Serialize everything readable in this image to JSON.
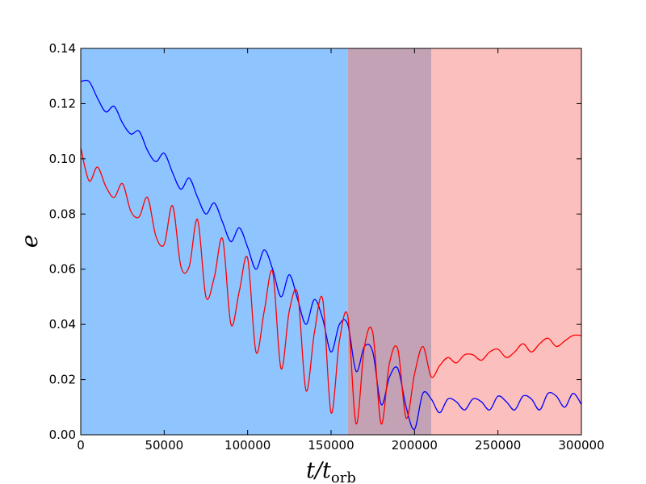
{
  "chart_data": {
    "type": "line",
    "title": "",
    "xlabel": {
      "main": "t/t",
      "sub": "orb"
    },
    "ylabel": "e",
    "xlim": [
      0,
      300000
    ],
    "ylim": [
      0,
      0.14
    ],
    "x_ticks": [
      "0",
      "50000",
      "100000",
      "150000",
      "200000",
      "250000",
      "300000"
    ],
    "y_ticks": [
      "0.00",
      "0.02",
      "0.04",
      "0.06",
      "0.08",
      "0.10",
      "0.12",
      "0.14"
    ],
    "grid": false,
    "legend": "none",
    "shaded_regions": [
      {
        "x": [
          0,
          160000
        ],
        "color": "#8fc5ff"
      },
      {
        "x": [
          160000,
          210000
        ],
        "color": "#c4a2b6"
      },
      {
        "x": [
          210000,
          300000
        ],
        "color": "#fbbfbd"
      }
    ],
    "series": [
      {
        "color": "#0000ff",
        "x": [
          0,
          5000,
          10000,
          15000,
          20000,
          25000,
          30000,
          35000,
          40000,
          45000,
          50000,
          55000,
          60000,
          65000,
          70000,
          75000,
          80000,
          85000,
          90000,
          95000,
          100000,
          105000,
          110000,
          115000,
          120000,
          125000,
          130000,
          135000,
          140000,
          145000,
          150000,
          155000,
          160000,
          165000,
          170000,
          175000,
          180000,
          185000,
          190000,
          195000,
          200000,
          205000,
          210000,
          215000,
          220000,
          225000,
          230000,
          235000,
          240000,
          245000,
          250000,
          255000,
          260000,
          265000,
          270000,
          275000,
          280000,
          285000,
          290000,
          295000,
          300000
        ],
        "values": [
          0.128,
          0.128,
          0.122,
          0.117,
          0.119,
          0.113,
          0.109,
          0.11,
          0.103,
          0.099,
          0.102,
          0.095,
          0.089,
          0.093,
          0.086,
          0.08,
          0.084,
          0.077,
          0.07,
          0.075,
          0.068,
          0.06,
          0.067,
          0.06,
          0.05,
          0.058,
          0.049,
          0.04,
          0.049,
          0.042,
          0.03,
          0.04,
          0.04,
          0.023,
          0.032,
          0.03,
          0.011,
          0.021,
          0.024,
          0.01,
          0.002,
          0.015,
          0.013,
          0.008,
          0.013,
          0.012,
          0.009,
          0.013,
          0.012,
          0.009,
          0.014,
          0.012,
          0.009,
          0.014,
          0.013,
          0.009,
          0.015,
          0.014,
          0.01,
          0.015,
          0.011
        ]
      },
      {
        "color": "#ff0000",
        "x": [
          0,
          5000,
          10000,
          15000,
          20000,
          25000,
          30000,
          35000,
          40000,
          45000,
          50000,
          55000,
          60000,
          65000,
          70000,
          75000,
          80000,
          85000,
          90000,
          95000,
          100000,
          105000,
          110000,
          115000,
          120000,
          125000,
          130000,
          135000,
          140000,
          145000,
          150000,
          155000,
          160000,
          165000,
          170000,
          175000,
          180000,
          185000,
          190000,
          195000,
          200000,
          205000,
          210000,
          215000,
          220000,
          225000,
          230000,
          235000,
          240000,
          245000,
          250000,
          255000,
          260000,
          265000,
          270000,
          275000,
          280000,
          285000,
          290000,
          295000,
          300000
        ],
        "values": [
          0.104,
          0.092,
          0.097,
          0.09,
          0.086,
          0.091,
          0.081,
          0.079,
          0.086,
          0.072,
          0.069,
          0.083,
          0.061,
          0.061,
          0.078,
          0.05,
          0.057,
          0.071,
          0.04,
          0.052,
          0.064,
          0.03,
          0.045,
          0.059,
          0.024,
          0.045,
          0.051,
          0.016,
          0.037,
          0.049,
          0.008,
          0.034,
          0.043,
          0.004,
          0.032,
          0.037,
          0.004,
          0.026,
          0.031,
          0.006,
          0.022,
          0.032,
          0.021,
          0.025,
          0.028,
          0.026,
          0.029,
          0.029,
          0.027,
          0.03,
          0.031,
          0.028,
          0.03,
          0.033,
          0.03,
          0.033,
          0.035,
          0.032,
          0.034,
          0.036,
          0.036
        ]
      }
    ]
  }
}
